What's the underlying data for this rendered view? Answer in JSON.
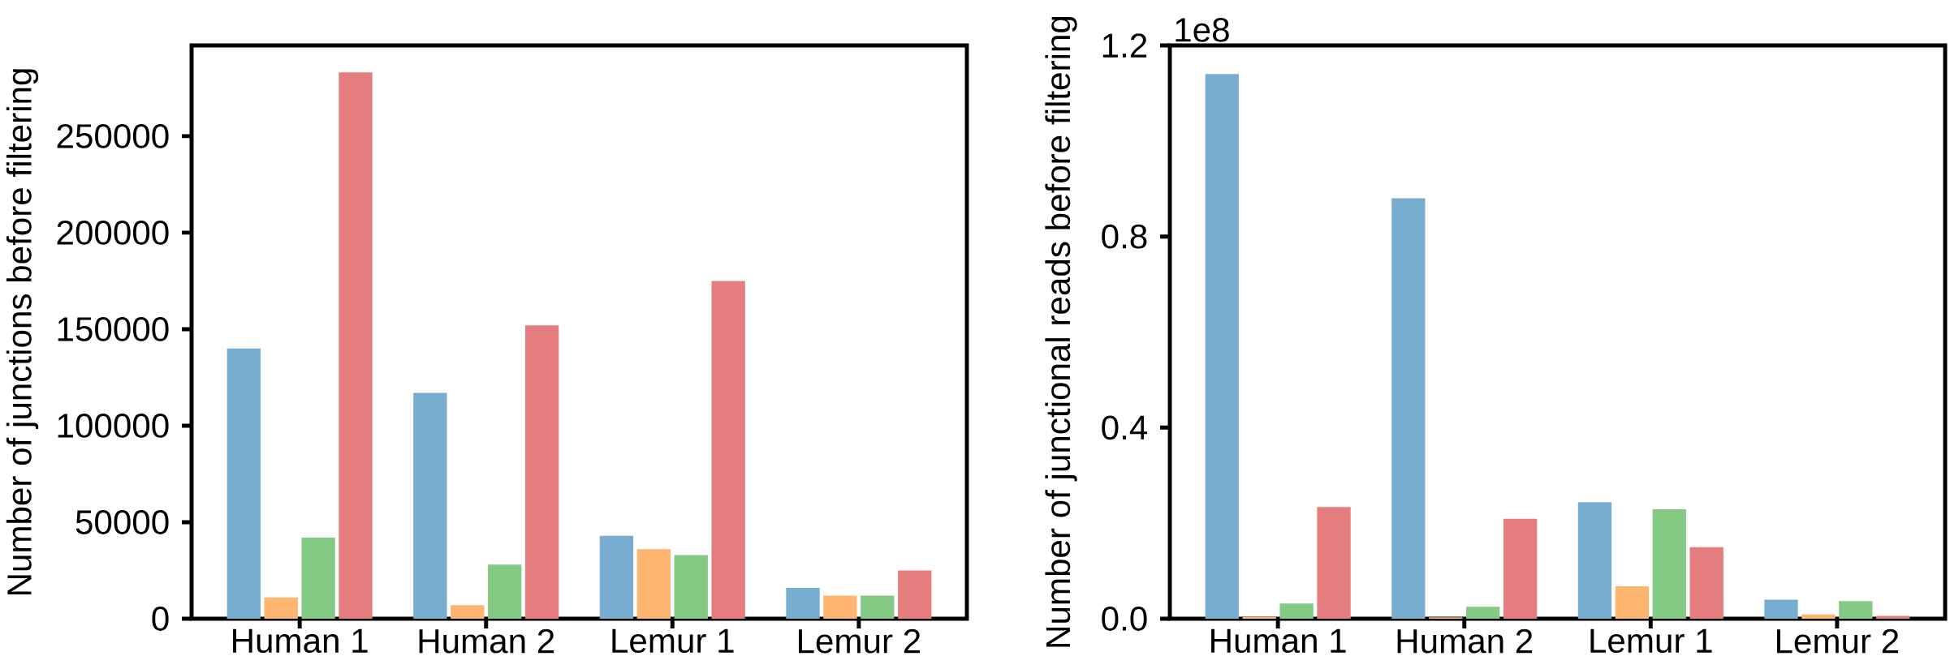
{
  "chart_data": [
    {
      "type": "bar",
      "ylabel": "Number of junctions before filtering",
      "categories": [
        "Human 1",
        "Human 2",
        "Lemur 1",
        "Lemur 2"
      ],
      "series": [
        {
          "color": "#78acd1",
          "values": [
            140000,
            117000,
            43000,
            16000
          ]
        },
        {
          "color": "#fdb56f",
          "values": [
            11000,
            7000,
            36000,
            12000
          ]
        },
        {
          "color": "#84c984",
          "values": [
            42000,
            28000,
            33000,
            12000
          ]
        },
        {
          "color": "#e57c7d",
          "values": [
            283000,
            152000,
            175000,
            25000
          ]
        }
      ],
      "ylim": [
        0,
        297000
      ],
      "yticks": [
        0,
        50000,
        100000,
        150000,
        200000,
        250000
      ]
    },
    {
      "type": "bar",
      "ylabel": "Number of junctional reads before filtering",
      "categories": [
        "Human 1",
        "Human 2",
        "Lemur 1",
        "Lemur 2"
      ],
      "series": [
        {
          "color": "#78acd1",
          "values": [
            1.14,
            0.88,
            0.244,
            0.04
          ]
        },
        {
          "color": "#fdb56f",
          "values": [
            0.004,
            0.003,
            0.068,
            0.009
          ]
        },
        {
          "color": "#84c984",
          "values": [
            0.032,
            0.025,
            0.229,
            0.037
          ]
        },
        {
          "color": "#e57c7d",
          "values": [
            0.234,
            0.209,
            0.15,
            0.006
          ]
        }
      ],
      "ylim": [
        0,
        1.2
      ],
      "yticks": [
        {
          "value": 0,
          "label": "0.0"
        },
        0.4,
        0.8,
        1.2
      ],
      "annotations": [
        "1e8"
      ]
    }
  ]
}
